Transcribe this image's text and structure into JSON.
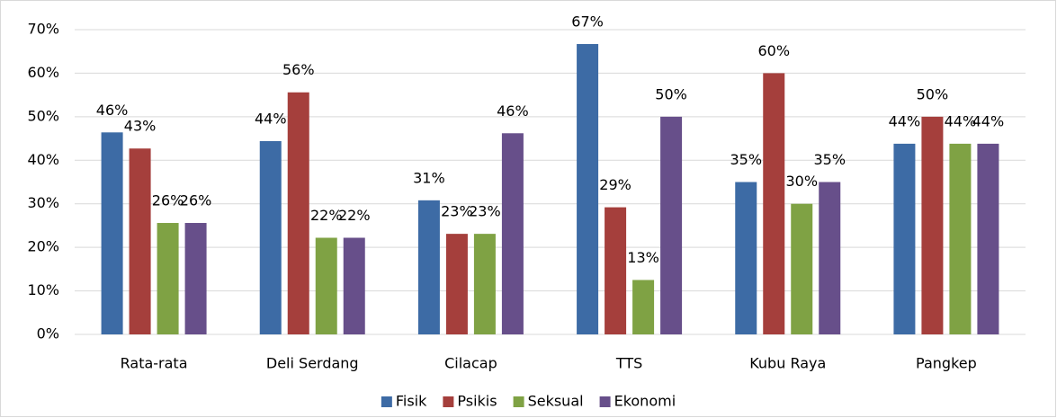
{
  "chart_data": {
    "type": "bar",
    "categories": [
      "Rata-rata",
      "Deli Serdang",
      "Cilacap",
      "TTS",
      "Kubu Raya",
      "Pangkep"
    ],
    "series": [
      {
        "name": "Fisik",
        "color": "#3d6ba5",
        "values": [
          46.4,
          44.4,
          30.8,
          66.7,
          35,
          43.8
        ],
        "value_labels": [
          "46%",
          "44%",
          "31%",
          "67%",
          "35%",
          "44%"
        ]
      },
      {
        "name": "Psikis",
        "color": "#a53f3c",
        "values": [
          42.7,
          55.6,
          23.1,
          29.2,
          60,
          50
        ],
        "value_labels": [
          "43%",
          "56%",
          "23%",
          "29%",
          "60%",
          "50%"
        ]
      },
      {
        "name": "Seksual",
        "color": "#7fa244",
        "values": [
          25.6,
          22.2,
          23.1,
          12.5,
          30,
          43.8
        ],
        "value_labels": [
          "26%",
          "22%",
          "23%",
          "13%",
          "30%",
          "44%"
        ]
      },
      {
        "name": "Ekonomi",
        "color": "#674f8a",
        "values": [
          25.6,
          22.2,
          46.2,
          50,
          35,
          43.8
        ],
        "value_labels": [
          "26%",
          "22%",
          "46%",
          "50%",
          "35%",
          "44%"
        ]
      }
    ],
    "ylim": [
      0,
      70
    ],
    "yticks": [
      {
        "value": 0,
        "label": "0%"
      },
      {
        "value": 10,
        "label": "10%"
      },
      {
        "value": 20,
        "label": "20%"
      },
      {
        "value": 30,
        "label": "30%"
      },
      {
        "value": 40,
        "label": "40%"
      },
      {
        "value": 50,
        "label": "50%"
      },
      {
        "value": 60,
        "label": "60%"
      },
      {
        "value": 70,
        "label": "70%"
      }
    ],
    "grid": true,
    "legend": "bottom"
  }
}
